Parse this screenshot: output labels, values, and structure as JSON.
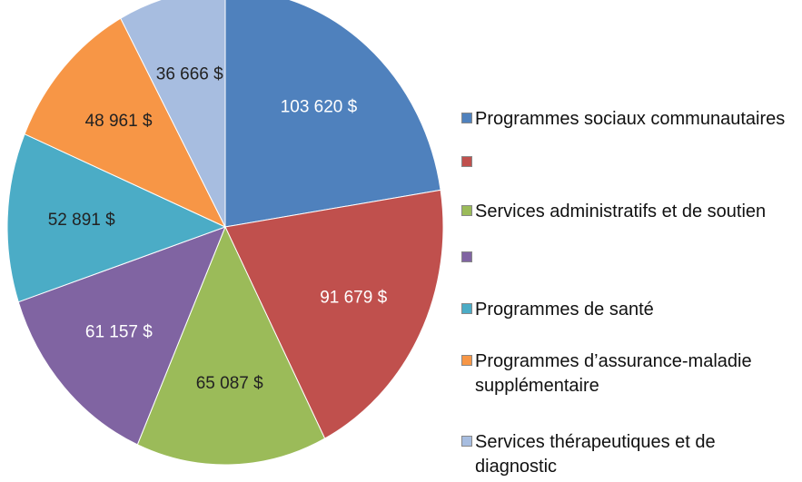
{
  "chart_data": {
    "type": "pie",
    "categories": [
      "Programmes sociaux communautaires",
      null,
      "Services administratifs et de soutien",
      null,
      "Programmes de santé",
      "Programmes d’assurance-maladie supplémentaire",
      "Services thérapeutiques et de diagnostic"
    ],
    "values": [
      103620,
      91679,
      65087,
      61157,
      52891,
      48961,
      36666
    ],
    "value_labels": [
      "103 620 $",
      "91 679 $",
      "65 087 $",
      "61 157 $",
      "52 891 $",
      "48 961 $",
      "36 666 $"
    ],
    "colors": [
      "#4f81bd",
      "#c0504d",
      "#9bbb59",
      "#8064a2",
      "#4bacc6",
      "#f79646",
      "#a7bde0"
    ],
    "legend": "right"
  }
}
